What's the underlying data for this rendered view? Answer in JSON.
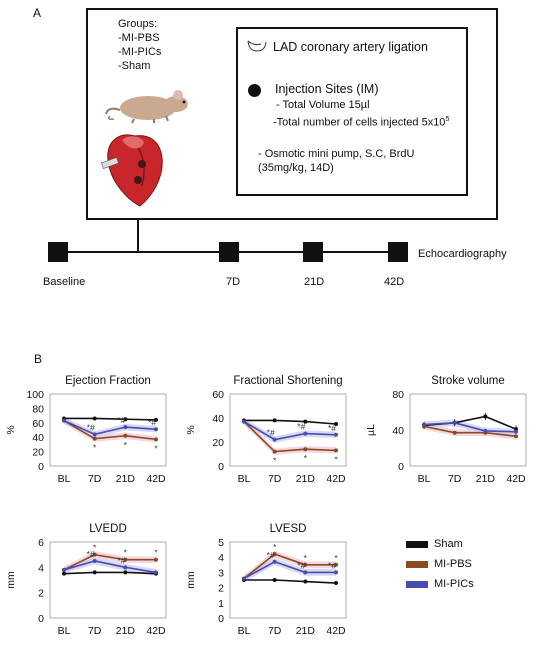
{
  "panel_a": {
    "letter": "A",
    "groups_title": "Groups:",
    "groups": [
      "-MI-PBS",
      "-MI-PICs",
      "-Sham"
    ],
    "procedure": "LAD coronary artery ligation",
    "injection_title": "Injection Sites (IM)",
    "injection_lines": [
      "- Total Volume 15µl",
      "-Total number of cells injected 5x10"
    ],
    "injection_exp": "5",
    "pump_lines": [
      "- Osmotic mini pump, S.C, BrdU",
      "(35mg/kg, 14D)"
    ],
    "timeline": {
      "labels": [
        "Baseline",
        "7D",
        "21D",
        "42D"
      ],
      "end_label": "Echocardiography"
    }
  },
  "panel_b": {
    "letter": "B",
    "legend": [
      {
        "name": "Sham",
        "color": "#111111"
      },
      {
        "name": "MI-PBS",
        "color": "#8b4a1f"
      },
      {
        "name": "MI-PICs",
        "color": "#4a4ab0"
      }
    ]
  },
  "chart_data": [
    {
      "type": "line",
      "title": "Ejection Fraction",
      "ylabel": "%",
      "categories": [
        "BL",
        "7D",
        "21D",
        "42D"
      ],
      "ylim": [
        0,
        100
      ],
      "yticks": [
        0,
        20,
        40,
        60,
        80,
        100
      ],
      "series": [
        {
          "name": "Sham",
          "values": [
            66,
            66,
            65,
            64
          ]
        },
        {
          "name": "MI-PBS",
          "values": [
            63,
            38,
            42,
            37
          ]
        },
        {
          "name": "MI-PICs",
          "values": [
            63,
            44,
            54,
            51
          ]
        }
      ],
      "annotations": [
        {
          "x": "7D",
          "text": "*#"
        },
        {
          "x": "21D",
          "text": "*#"
        },
        {
          "x": "42D",
          "text": "*#"
        },
        {
          "x": "7D",
          "text": "*"
        },
        {
          "x": "21D",
          "text": "*"
        },
        {
          "x": "42D",
          "text": "*"
        }
      ]
    },
    {
      "type": "line",
      "title": "Fractional Shortening",
      "ylabel": "%",
      "categories": [
        "BL",
        "7D",
        "21D",
        "42D"
      ],
      "ylim": [
        0,
        60
      ],
      "yticks": [
        0,
        20,
        40,
        60
      ],
      "series": [
        {
          "name": "Sham",
          "values": [
            38,
            38,
            37,
            35
          ]
        },
        {
          "name": "MI-PBS",
          "values": [
            37,
            12,
            14,
            13
          ]
        },
        {
          "name": "MI-PICs",
          "values": [
            37,
            22,
            27,
            26
          ]
        }
      ],
      "annotations": [
        {
          "x": "7D",
          "text": "*#"
        },
        {
          "x": "21D",
          "text": "*#"
        },
        {
          "x": "42D",
          "text": "*#"
        },
        {
          "x": "7D",
          "text": "*"
        },
        {
          "x": "21D",
          "text": "*"
        },
        {
          "x": "42D",
          "text": "*"
        }
      ]
    },
    {
      "type": "line",
      "title": "Stroke volume",
      "ylabel": "µL",
      "categories": [
        "BL",
        "7D",
        "21D",
        "42D"
      ],
      "ylim": [
        0,
        80
      ],
      "yticks": [
        0,
        40,
        80
      ],
      "series": [
        {
          "name": "Sham",
          "values": [
            45,
            48,
            55,
            41
          ]
        },
        {
          "name": "MI-PBS",
          "values": [
            44,
            37,
            37,
            33
          ]
        },
        {
          "name": "MI-PICs",
          "values": [
            46,
            48,
            39,
            38
          ]
        }
      ]
    },
    {
      "type": "line",
      "title": "LVEDD",
      "ylabel": "mm",
      "categories": [
        "BL",
        "7D",
        "21D",
        "42D"
      ],
      "ylim": [
        0,
        6
      ],
      "yticks": [
        0,
        2,
        4,
        6
      ],
      "series": [
        {
          "name": "Sham",
          "values": [
            3.5,
            3.6,
            3.6,
            3.5
          ]
        },
        {
          "name": "MI-PBS",
          "values": [
            3.8,
            5.0,
            4.6,
            4.6
          ]
        },
        {
          "name": "MI-PICs",
          "values": [
            3.8,
            4.5,
            4.0,
            3.6
          ]
        }
      ],
      "annotations": [
        {
          "x": "7D",
          "text": "*"
        },
        {
          "x": "21D",
          "text": "*"
        },
        {
          "x": "42D",
          "text": "*"
        },
        {
          "x": "7D",
          "text": "*#"
        },
        {
          "x": "21D",
          "text": "*#"
        }
      ]
    },
    {
      "type": "line",
      "title": "LVESD",
      "ylabel": "mm",
      "categories": [
        "BL",
        "7D",
        "21D",
        "42D"
      ],
      "ylim": [
        0,
        5
      ],
      "yticks": [
        0,
        1,
        2,
        3,
        4,
        5
      ],
      "series": [
        {
          "name": "Sham",
          "values": [
            2.5,
            2.5,
            2.4,
            2.3
          ]
        },
        {
          "name": "MI-PBS",
          "values": [
            2.6,
            4.2,
            3.5,
            3.5
          ]
        },
        {
          "name": "MI-PICs",
          "values": [
            2.6,
            3.7,
            3.0,
            3.0
          ]
        }
      ],
      "annotations": [
        {
          "x": "7D",
          "text": "*"
        },
        {
          "x": "21D",
          "text": "*"
        },
        {
          "x": "42D",
          "text": "*"
        },
        {
          "x": "7D",
          "text": "*#"
        },
        {
          "x": "21D",
          "text": "*#"
        },
        {
          "x": "42D",
          "text": "*#"
        }
      ]
    }
  ],
  "colors": {
    "Sham": "#111111",
    "MI-PBS": "#8b4a1f",
    "MI-PICs": "#4a4ab0",
    "shade_pbs": "#f2c9d8",
    "shade_pics": "#c9cdf0",
    "heart": "#c8262b",
    "mouse": "#c9a98f"
  },
  "icons": [
    "mouse-illustration",
    "heart-illustration",
    "ligation-suture-icon",
    "injection-dot-icon"
  ]
}
